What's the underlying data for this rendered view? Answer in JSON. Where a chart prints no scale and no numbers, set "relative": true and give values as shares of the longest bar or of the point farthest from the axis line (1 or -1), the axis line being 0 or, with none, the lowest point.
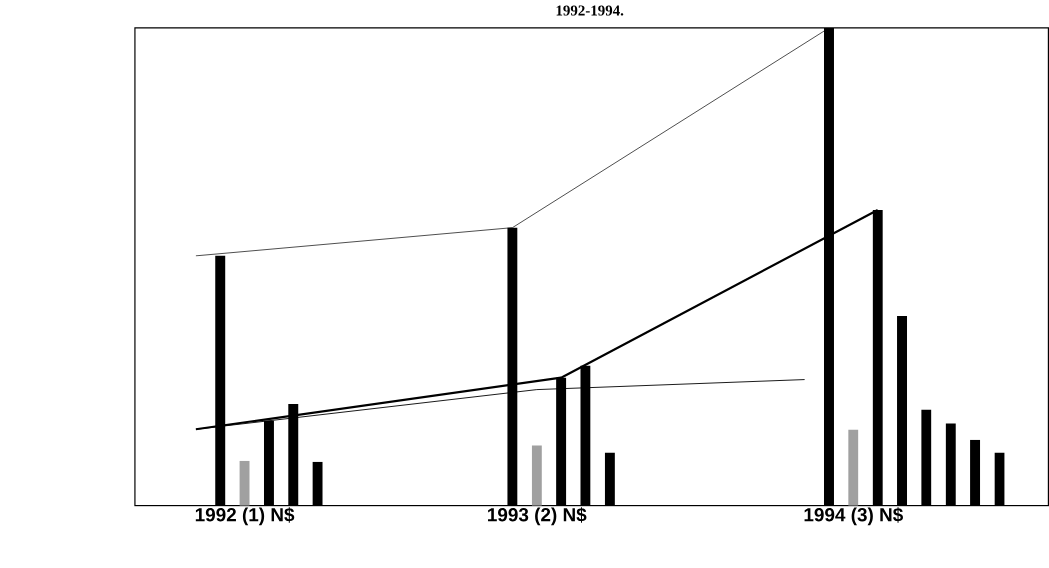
{
  "chart_data": {
    "type": "bar",
    "title": "1992-1994.",
    "relative": true,
    "categories": [
      null,
      null,
      "1992 (1) N$",
      null,
      null,
      null,
      null,
      null,
      null,
      null,
      null,
      null,
      null,
      null,
      "1993 (2) N$",
      null,
      null,
      null,
      null,
      null,
      null,
      null,
      null,
      null,
      null,
      null,
      null,
      "1994 (3) N$",
      null,
      null,
      null,
      null,
      null,
      null
    ],
    "series": [
      {
        "colors": [
          "#000000",
          "#000000",
          "#a0a0a0",
          "#000000",
          "#000000",
          "#000000",
          "#000000",
          "#000000",
          "#000000",
          "#000000",
          "#000000",
          "#000000",
          "#000000",
          "#000000",
          "#a0a0a0",
          "#000000",
          "#000000",
          "#000000",
          "#000000",
          "#000000",
          "#000000",
          "#000000",
          "#000000",
          "#000000",
          "#000000",
          "#000000",
          "#000000",
          "#a0a0a0",
          "#000000",
          "#000000",
          "#000000",
          "#000000",
          "#000000",
          "#000000"
        ],
        "values": [
          null,
          0.523,
          0.094,
          0.178,
          0.213,
          0.092,
          null,
          null,
          null,
          null,
          null,
          null,
          null,
          0.582,
          0.126,
          0.268,
          0.293,
          0.111,
          null,
          null,
          null,
          null,
          null,
          null,
          null,
          null,
          1,
          0.159,
          0.619,
          0.397,
          0.201,
          0.172,
          0.138,
          0.111
        ]
      },
      {
        "type": "line",
        "color": "#000000",
        "values": [
          0.523,
          null,
          null,
          null,
          null,
          null,
          null,
          null,
          null,
          null,
          null,
          null,
          null,
          0.582,
          null,
          null,
          null,
          null,
          null,
          null,
          null,
          null,
          null,
          null,
          null,
          null,
          1,
          null,
          null,
          null,
          null,
          null,
          null,
          null
        ]
      },
      {
        "type": "line",
        "color": "#000000",
        "values": [
          0.16,
          null,
          null,
          null,
          null,
          null,
          null,
          null,
          null,
          null,
          null,
          null,
          null,
          null,
          null,
          0.268,
          null,
          null,
          null,
          null,
          null,
          null,
          null,
          null,
          null,
          null,
          null,
          null,
          0.619,
          null,
          null,
          null,
          null,
          null
        ]
      },
      {
        "type": "line",
        "color": "#000000",
        "values": [
          0.16,
          null,
          null,
          null,
          null,
          null,
          null,
          null,
          null,
          null,
          null,
          null,
          null,
          null,
          0.243,
          null,
          null,
          null,
          null,
          null,
          null,
          null,
          null,
          null,
          null,
          0.264,
          null,
          null,
          null,
          null,
          null,
          null,
          null,
          null
        ]
      }
    ]
  }
}
